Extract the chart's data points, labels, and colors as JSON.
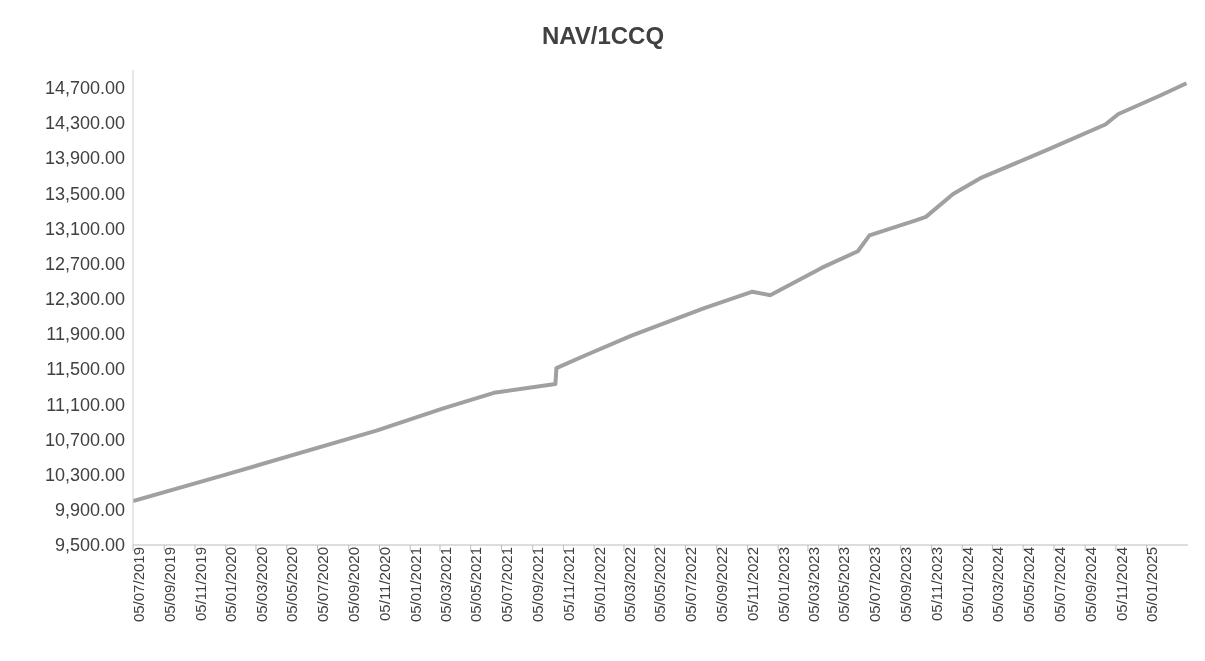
{
  "chart_data": {
    "type": "line",
    "title": "NAV/1CCQ",
    "x": [
      "2019-07-05",
      "2020-01-05",
      "2020-10-30",
      "2021-03-10",
      "2021-06-20",
      "2021-10-20",
      "2021-10-22",
      "2021-12-20",
      "2022-03-20",
      "2022-08-10",
      "2022-11-15",
      "2022-12-20",
      "2023-04-01",
      "2023-06-12",
      "2023-07-05",
      "2023-10-05",
      "2023-10-25",
      "2023-12-18",
      "2024-02-10",
      "2024-06-25",
      "2024-10-15",
      "2024-11-10",
      "2025-02-01",
      "2025-03-25"
    ],
    "series": [
      {
        "color": "#a0a0a0",
        "values": [
          10000,
          10300,
          10800,
          11050,
          11230,
          11330,
          11510,
          11660,
          11880,
          12190,
          12380,
          12340,
          12650,
          12840,
          13020,
          13190,
          13230,
          13490,
          13670,
          14000,
          14280,
          14400,
          14610,
          14750
        ]
      }
    ],
    "xlim": [
      "2019-07-05",
      "2025-03-28"
    ],
    "xticks": [
      {
        "value": "2019-07-05",
        "label": "05/07/2019"
      },
      {
        "value": "2019-09-05",
        "label": "05/09/2019"
      },
      {
        "value": "2019-11-05",
        "label": "05/11/2019"
      },
      {
        "value": "2020-01-05",
        "label": "05/01/2020"
      },
      {
        "value": "2020-03-05",
        "label": "05/03/2020"
      },
      {
        "value": "2020-05-05",
        "label": "05/05/2020"
      },
      {
        "value": "2020-07-05",
        "label": "05/07/2020"
      },
      {
        "value": "2020-09-05",
        "label": "05/09/2020"
      },
      {
        "value": "2020-11-05",
        "label": "05/11/2020"
      },
      {
        "value": "2021-01-05",
        "label": "05/01/2021"
      },
      {
        "value": "2021-03-05",
        "label": "05/03/2021"
      },
      {
        "value": "2021-05-05",
        "label": "05/05/2021"
      },
      {
        "value": "2021-07-05",
        "label": "05/07/2021"
      },
      {
        "value": "2021-09-05",
        "label": "05/09/2021"
      },
      {
        "value": "2021-11-05",
        "label": "05/11/2021"
      },
      {
        "value": "2022-01-05",
        "label": "05/01/2022"
      },
      {
        "value": "2022-03-05",
        "label": "05/03/2022"
      },
      {
        "value": "2022-05-05",
        "label": "05/05/2022"
      },
      {
        "value": "2022-07-05",
        "label": "05/07/2022"
      },
      {
        "value": "2022-09-05",
        "label": "05/09/2022"
      },
      {
        "value": "2022-11-05",
        "label": "05/11/2022"
      },
      {
        "value": "2023-01-05",
        "label": "05/01/2023"
      },
      {
        "value": "2023-03-05",
        "label": "05/03/2023"
      },
      {
        "value": "2023-05-05",
        "label": "05/05/2023"
      },
      {
        "value": "2023-07-05",
        "label": "05/07/2023"
      },
      {
        "value": "2023-09-05",
        "label": "05/09/2023"
      },
      {
        "value": "2023-11-05",
        "label": "05/11/2023"
      },
      {
        "value": "2024-01-05",
        "label": "05/01/2024"
      },
      {
        "value": "2024-03-05",
        "label": "05/03/2024"
      },
      {
        "value": "2024-05-05",
        "label": "05/05/2024"
      },
      {
        "value": "2024-07-05",
        "label": "05/07/2024"
      },
      {
        "value": "2024-09-05",
        "label": "05/09/2024"
      },
      {
        "value": "2024-11-05",
        "label": "05/11/2024"
      },
      {
        "value": "2025-01-05",
        "label": "05/01/2025"
      }
    ],
    "ylim": [
      9500,
      14900
    ],
    "yticks": [
      {
        "value": 9500,
        "label": "9,500.00"
      },
      {
        "value": 9900,
        "label": "9,900.00"
      },
      {
        "value": 10300,
        "label": "10,300.00"
      },
      {
        "value": 10700,
        "label": "10,700.00"
      },
      {
        "value": 11100,
        "label": "11,100.00"
      },
      {
        "value": 11500,
        "label": "11,500.00"
      },
      {
        "value": 11900,
        "label": "11,900.00"
      },
      {
        "value": 12300,
        "label": "12,300.00"
      },
      {
        "value": 12700,
        "label": "12,700.00"
      },
      {
        "value": 13100,
        "label": "13,100.00"
      },
      {
        "value": 13500,
        "label": "13,500.00"
      },
      {
        "value": 13900,
        "label": "13,900.00"
      },
      {
        "value": 14300,
        "label": "14,300.00"
      },
      {
        "value": 14700,
        "label": "14,700.00"
      }
    ],
    "legend": false,
    "grid": false,
    "marker": "none",
    "line_style": "solid"
  }
}
